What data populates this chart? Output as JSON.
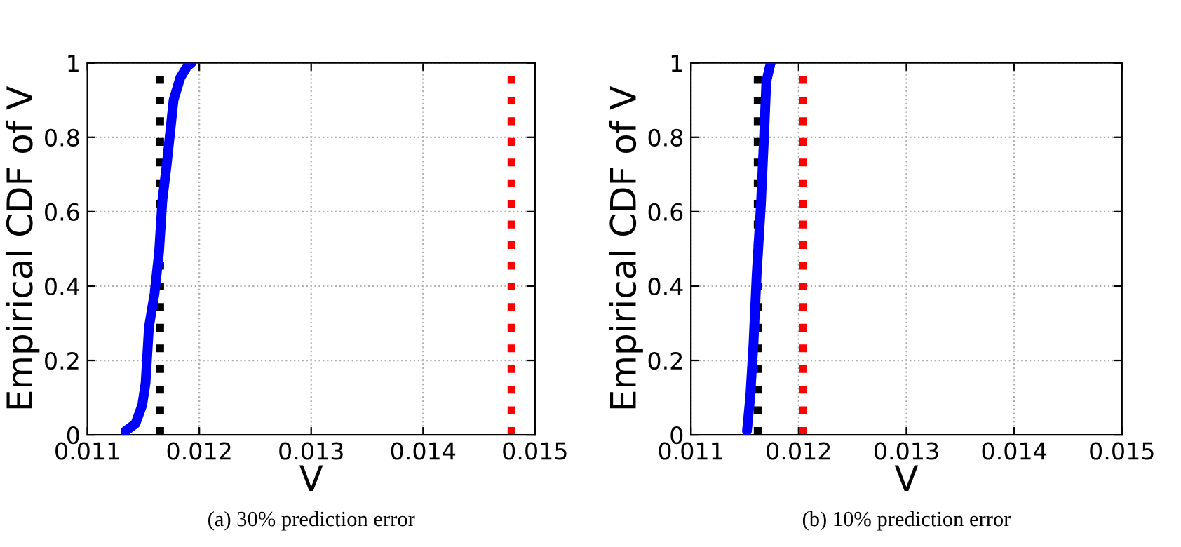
{
  "chart_data": [
    {
      "type": "line",
      "xlabel": "V",
      "ylabel": "Empirical CDF of V",
      "xlim": [
        0.011,
        0.015
      ],
      "ylim": [
        0,
        1
      ],
      "xticks": [
        0.011,
        0.012,
        0.013,
        0.014,
        0.015
      ],
      "yticks": [
        0,
        0.2,
        0.4,
        0.6,
        0.8,
        1
      ],
      "grid": true,
      "line_style": "solid",
      "marker": "none",
      "series": [
        {
          "color": "#0000ff",
          "x": [
            0.01134,
            0.01143,
            0.01149,
            0.01152,
            0.01155,
            0.0116,
            0.01164,
            0.01167,
            0.01171,
            0.01177,
            0.01183,
            0.01189,
            0.01193
          ],
          "values": [
            0.01,
            0.03,
            0.08,
            0.14,
            0.29,
            0.38,
            0.49,
            0.63,
            0.73,
            0.9,
            0.96,
            0.99,
            1
          ]
        }
      ],
      "ref_lines": [
        {
          "axis": "x",
          "value": 0.01165,
          "color": "#000000",
          "line_style": "dotted"
        },
        {
          "axis": "x",
          "value": 0.01479,
          "color": "#ff0000",
          "line_style": "dotted"
        }
      ],
      "annotations": [
        "(a) 30% prediction error"
      ]
    },
    {
      "type": "line",
      "xlabel": "V",
      "ylabel": "Empirical CDF of V",
      "xlim": [
        0.011,
        0.015
      ],
      "ylim": [
        0,
        1
      ],
      "xticks": [
        0.011,
        0.012,
        0.013,
        0.014,
        0.015
      ],
      "yticks": [
        0,
        0.2,
        0.4,
        0.6,
        0.8,
        1
      ],
      "grid": true,
      "line_style": "solid",
      "marker": "none",
      "series": [
        {
          "color": "#0000ff",
          "x": [
            0.01152,
            0.01155,
            0.01158,
            0.01161,
            0.01165,
            0.01168,
            0.0117,
            0.01174
          ],
          "values": [
            0.01,
            0.1,
            0.24,
            0.43,
            0.62,
            0.81,
            0.95,
            1
          ]
        }
      ],
      "ref_lines": [
        {
          "axis": "x",
          "value": 0.01162,
          "color": "#000000",
          "line_style": "dotted"
        },
        {
          "axis": "x",
          "value": 0.01204,
          "color": "#ff0000",
          "line_style": "dotted"
        }
      ],
      "annotations": [
        "(b) 10% prediction error"
      ]
    }
  ]
}
